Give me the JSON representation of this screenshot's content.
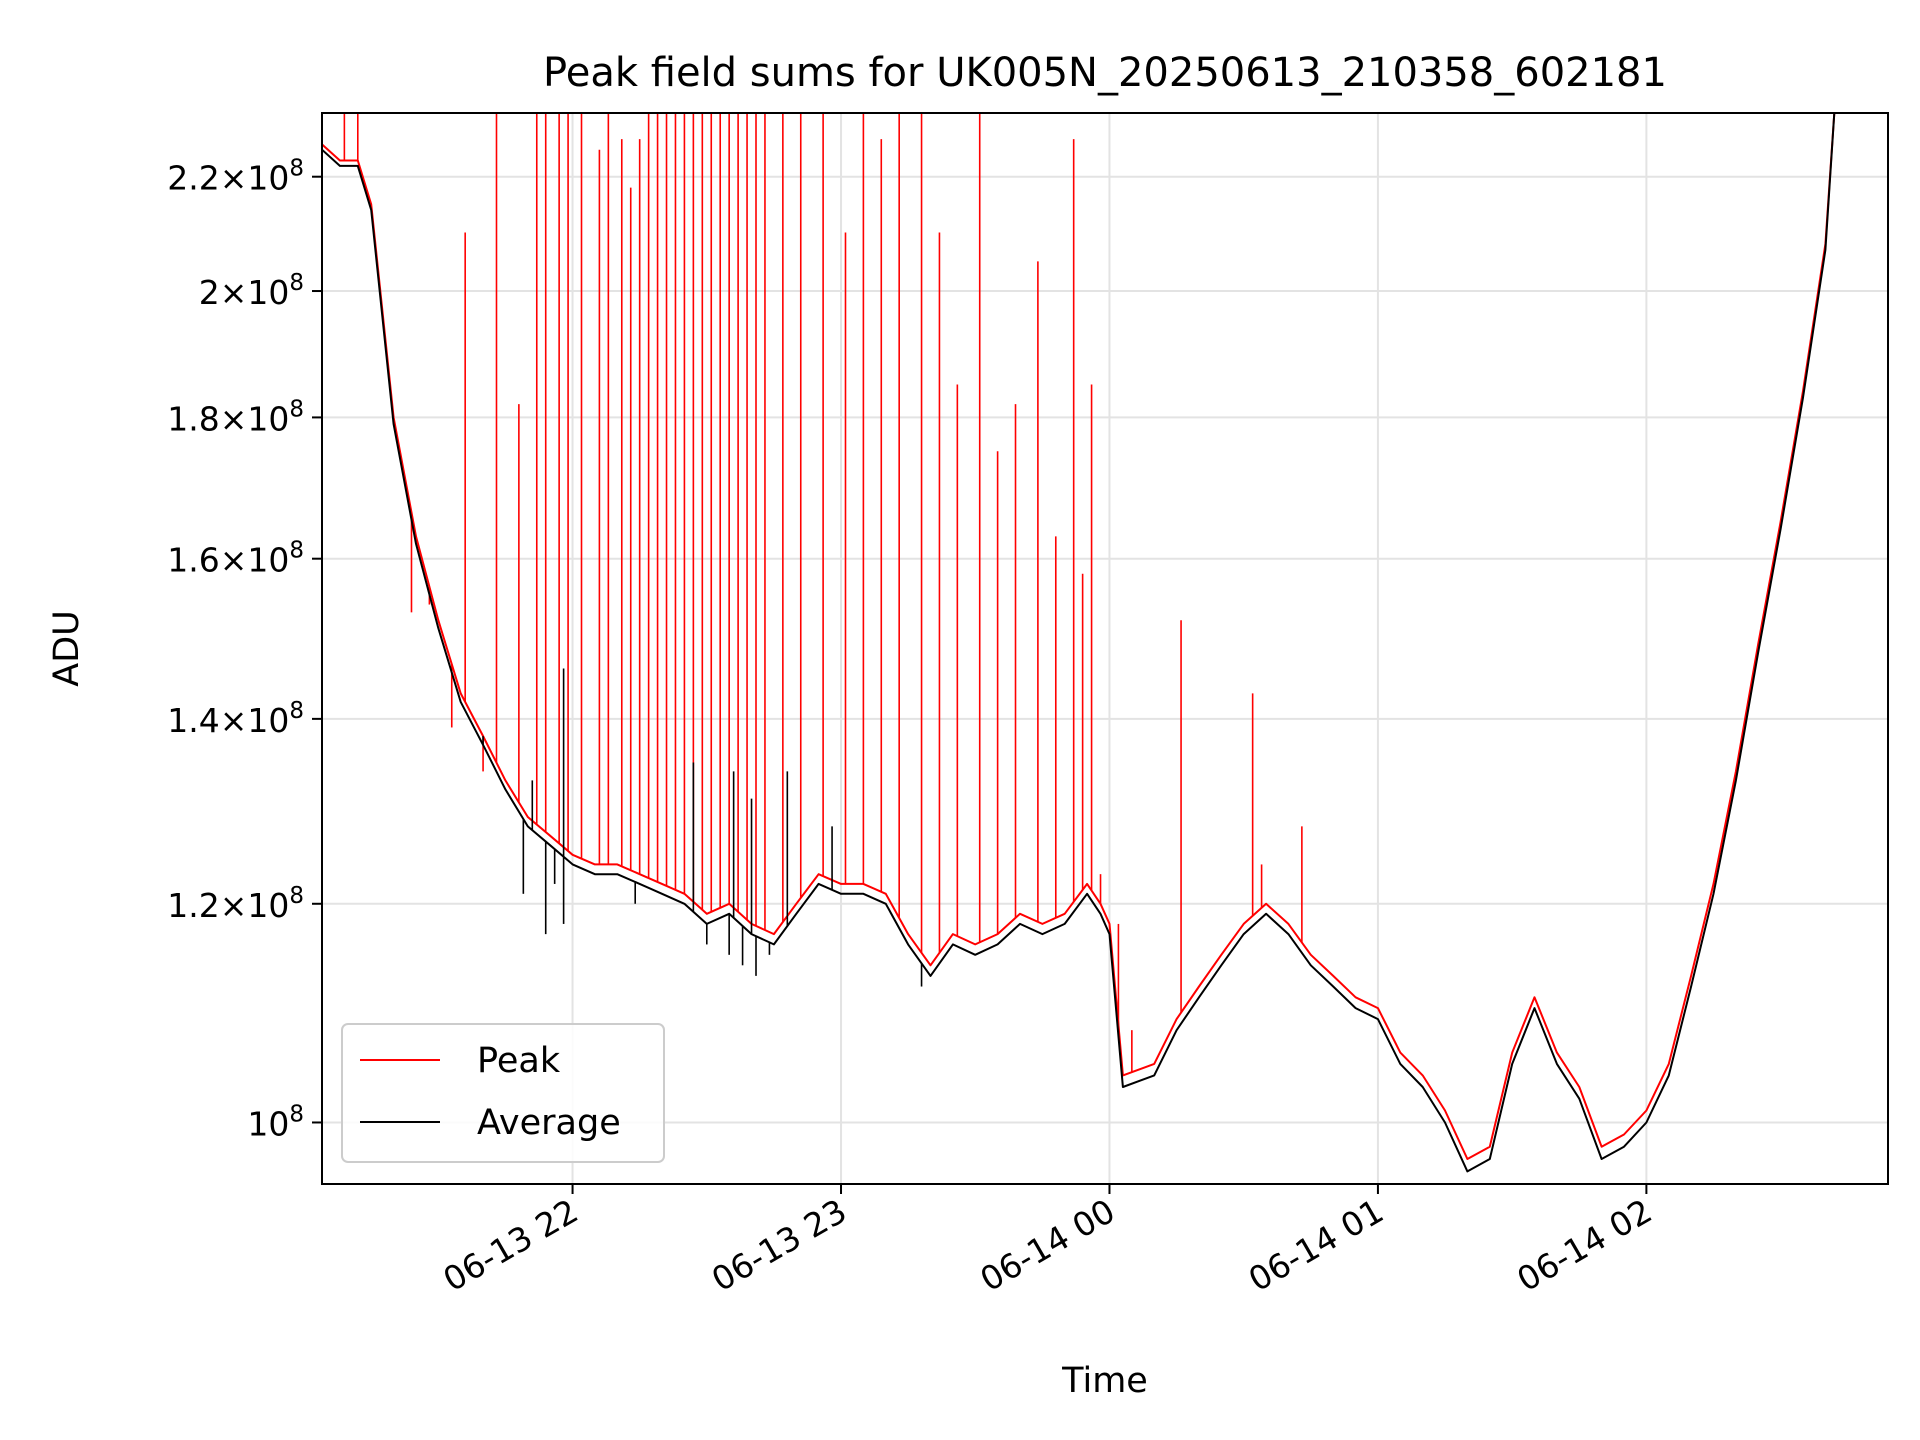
{
  "chart_data": {
    "type": "line",
    "title": "Peak field sums for UK005N_20250613_210358_602181",
    "xlabel": "Time",
    "ylabel": "ADU",
    "yscale": "log",
    "grid": true,
    "legend_position": "lower-left",
    "xlim": [
      "2025-06-13 21:04",
      "2025-06-14 02:54"
    ],
    "ylim": [
      95000000,
      232000000
    ],
    "x_ticks": [
      {
        "value": "2025-06-13 22:00",
        "label": "06-13 22"
      },
      {
        "value": "2025-06-13 23:00",
        "label": "06-13 23"
      },
      {
        "value": "2025-06-14 00:00",
        "label": "06-14 00"
      },
      {
        "value": "2025-06-14 01:00",
        "label": "06-14 01"
      },
      {
        "value": "2025-06-14 02:00",
        "label": "06-14 02"
      }
    ],
    "y_ticks": [
      {
        "value": 100000000,
        "base": "10",
        "exp": "8",
        "mant": ""
      },
      {
        "value": 120000000,
        "base": "10",
        "exp": "8",
        "mant": "1.2"
      },
      {
        "value": 140000000,
        "base": "10",
        "exp": "8",
        "mant": "1.4"
      },
      {
        "value": 160000000,
        "base": "10",
        "exp": "8",
        "mant": "1.6"
      },
      {
        "value": 180000000,
        "base": "10",
        "exp": "8",
        "mant": "1.8"
      },
      {
        "value": 200000000,
        "base": "10",
        "exp": "8",
        "mant": "2"
      },
      {
        "value": 220000000,
        "base": "10",
        "exp": "8",
        "mant": "2.2"
      }
    ],
    "series": [
      {
        "name": "Peak",
        "color": "#ff0000",
        "x": [
          "2025-06-13 21:04",
          "2025-06-13 21:08",
          "2025-06-13 21:12",
          "2025-06-13 21:15",
          "2025-06-13 21:20",
          "2025-06-13 21:25",
          "2025-06-13 21:30",
          "2025-06-13 21:35",
          "2025-06-13 21:40",
          "2025-06-13 21:45",
          "2025-06-13 21:50",
          "2025-06-13 21:55",
          "2025-06-13 22:00",
          "2025-06-13 22:05",
          "2025-06-13 22:10",
          "2025-06-13 22:15",
          "2025-06-13 22:20",
          "2025-06-13 22:25",
          "2025-06-13 22:30",
          "2025-06-13 22:35",
          "2025-06-13 22:40",
          "2025-06-13 22:45",
          "2025-06-13 22:50",
          "2025-06-13 22:55",
          "2025-06-13 23:00",
          "2025-06-13 23:05",
          "2025-06-13 23:10",
          "2025-06-13 23:15",
          "2025-06-13 23:20",
          "2025-06-13 23:25",
          "2025-06-13 23:30",
          "2025-06-13 23:35",
          "2025-06-13 23:40",
          "2025-06-13 23:45",
          "2025-06-13 23:50",
          "2025-06-13 23:55",
          "2025-06-13 23:58",
          "2025-06-14 00:00",
          "2025-06-14 00:03",
          "2025-06-14 00:10",
          "2025-06-14 00:15",
          "2025-06-14 00:20",
          "2025-06-14 00:25",
          "2025-06-14 00:30",
          "2025-06-14 00:35",
          "2025-06-14 00:40",
          "2025-06-14 00:45",
          "2025-06-14 00:50",
          "2025-06-14 00:55",
          "2025-06-14 01:00",
          "2025-06-14 01:05",
          "2025-06-14 01:10",
          "2025-06-14 01:15",
          "2025-06-14 01:20",
          "2025-06-14 01:25",
          "2025-06-14 01:30",
          "2025-06-14 01:35",
          "2025-06-14 01:40",
          "2025-06-14 01:45",
          "2025-06-14 01:50",
          "2025-06-14 01:55",
          "2025-06-14 02:00",
          "2025-06-14 02:05",
          "2025-06-14 02:10",
          "2025-06-14 02:15",
          "2025-06-14 02:20",
          "2025-06-14 02:25",
          "2025-06-14 02:30",
          "2025-06-14 02:35",
          "2025-06-14 02:40",
          "2025-06-14 02:42"
        ],
        "y": [
          226000000,
          223000000,
          223000000,
          215000000,
          180000000,
          163000000,
          152000000,
          143000000,
          138000000,
          133000000,
          129000000,
          127000000,
          125000000,
          124000000,
          124000000,
          123000000,
          122000000,
          121000000,
          119000000,
          120000000,
          118000000,
          117000000,
          120000000,
          123000000,
          122000000,
          122000000,
          121000000,
          117000000,
          114000000,
          117000000,
          116000000,
          117000000,
          119000000,
          118000000,
          119000000,
          122000000,
          120000000,
          118000000,
          104000000,
          105000000,
          109000000,
          112000000,
          115000000,
          118000000,
          120000000,
          118000000,
          115000000,
          113000000,
          111000000,
          110000000,
          106000000,
          104000000,
          101000000,
          97000000,
          98000000,
          106000000,
          111000000,
          106000000,
          103000000,
          98000000,
          99000000,
          101000000,
          105000000,
          113000000,
          122000000,
          134000000,
          149000000,
          165000000,
          184000000,
          208000000,
          232000000
        ],
        "spikes": [
          {
            "x": "2025-06-13 21:09",
            "y": 232000000
          },
          {
            "x": "2025-06-13 21:12",
            "y": 232000000
          },
          {
            "x": "2025-06-13 21:24",
            "y": 153000000
          },
          {
            "x": "2025-06-13 21:28",
            "y": 154000000
          },
          {
            "x": "2025-06-13 21:33",
            "y": 139000000
          },
          {
            "x": "2025-06-13 21:36",
            "y": 210000000
          },
          {
            "x": "2025-06-13 21:40",
            "y": 134000000
          },
          {
            "x": "2025-06-13 21:43",
            "y": 232000000
          },
          {
            "x": "2025-06-13 21:48",
            "y": 182000000
          },
          {
            "x": "2025-06-13 21:52",
            "y": 232000000
          },
          {
            "x": "2025-06-13 21:54",
            "y": 232000000
          },
          {
            "x": "2025-06-13 21:57",
            "y": 232000000
          },
          {
            "x": "2025-06-13 21:59",
            "y": 232000000
          },
          {
            "x": "2025-06-13 22:02",
            "y": 232000000
          },
          {
            "x": "2025-06-13 22:06",
            "y": 225000000
          },
          {
            "x": "2025-06-13 22:08",
            "y": 232000000
          },
          {
            "x": "2025-06-13 22:11",
            "y": 227000000
          },
          {
            "x": "2025-06-13 22:13",
            "y": 218000000
          },
          {
            "x": "2025-06-13 22:15",
            "y": 227000000
          },
          {
            "x": "2025-06-13 22:17",
            "y": 232000000
          },
          {
            "x": "2025-06-13 22:19",
            "y": 232000000
          },
          {
            "x": "2025-06-13 22:21",
            "y": 232000000
          },
          {
            "x": "2025-06-13 22:23",
            "y": 232000000
          },
          {
            "x": "2025-06-13 22:25",
            "y": 232000000
          },
          {
            "x": "2025-06-13 22:27",
            "y": 232000000
          },
          {
            "x": "2025-06-13 22:29",
            "y": 232000000
          },
          {
            "x": "2025-06-13 22:31",
            "y": 232000000
          },
          {
            "x": "2025-06-13 22:33",
            "y": 232000000
          },
          {
            "x": "2025-06-13 22:35",
            "y": 232000000
          },
          {
            "x": "2025-06-13 22:37",
            "y": 232000000
          },
          {
            "x": "2025-06-13 22:39",
            "y": 232000000
          },
          {
            "x": "2025-06-13 22:41",
            "y": 232000000
          },
          {
            "x": "2025-06-13 22:43",
            "y": 232000000
          },
          {
            "x": "2025-06-13 22:47",
            "y": 232000000
          },
          {
            "x": "2025-06-13 22:51",
            "y": 232000000
          },
          {
            "x": "2025-06-13 22:56",
            "y": 232000000
          },
          {
            "x": "2025-06-13 23:01",
            "y": 210000000
          },
          {
            "x": "2025-06-13 23:05",
            "y": 232000000
          },
          {
            "x": "2025-06-13 23:09",
            "y": 227000000
          },
          {
            "x": "2025-06-13 23:13",
            "y": 232000000
          },
          {
            "x": "2025-06-13 23:18",
            "y": 232000000
          },
          {
            "x": "2025-06-13 23:22",
            "y": 210000000
          },
          {
            "x": "2025-06-13 23:26",
            "y": 185000000
          },
          {
            "x": "2025-06-13 23:31",
            "y": 232000000
          },
          {
            "x": "2025-06-13 23:35",
            "y": 175000000
          },
          {
            "x": "2025-06-13 23:39",
            "y": 182000000
          },
          {
            "x": "2025-06-13 23:44",
            "y": 205000000
          },
          {
            "x": "2025-06-13 23:48",
            "y": 163000000
          },
          {
            "x": "2025-06-13 23:52",
            "y": 227000000
          },
          {
            "x": "2025-06-13 23:54",
            "y": 158000000
          },
          {
            "x": "2025-06-13 23:56",
            "y": 185000000
          },
          {
            "x": "2025-06-13 23:58",
            "y": 123000000
          },
          {
            "x": "2025-06-14 00:02",
            "y": 118000000
          },
          {
            "x": "2025-06-14 00:05",
            "y": 108000000
          },
          {
            "x": "2025-06-14 00:16",
            "y": 152000000
          },
          {
            "x": "2025-06-14 00:32",
            "y": 143000000
          },
          {
            "x": "2025-06-14 00:34",
            "y": 124000000
          },
          {
            "x": "2025-06-14 00:43",
            "y": 128000000
          }
        ]
      },
      {
        "name": "Average",
        "color": "#000000",
        "x": [
          "2025-06-13 21:04",
          "2025-06-13 21:08",
          "2025-06-13 21:12",
          "2025-06-13 21:15",
          "2025-06-13 21:20",
          "2025-06-13 21:25",
          "2025-06-13 21:30",
          "2025-06-13 21:35",
          "2025-06-13 21:40",
          "2025-06-13 21:45",
          "2025-06-13 21:50",
          "2025-06-13 21:55",
          "2025-06-13 22:00",
          "2025-06-13 22:05",
          "2025-06-13 22:10",
          "2025-06-13 22:15",
          "2025-06-13 22:20",
          "2025-06-13 22:25",
          "2025-06-13 22:30",
          "2025-06-13 22:35",
          "2025-06-13 22:40",
          "2025-06-13 22:45",
          "2025-06-13 22:50",
          "2025-06-13 22:55",
          "2025-06-13 23:00",
          "2025-06-13 23:05",
          "2025-06-13 23:10",
          "2025-06-13 23:15",
          "2025-06-13 23:20",
          "2025-06-13 23:25",
          "2025-06-13 23:30",
          "2025-06-13 23:35",
          "2025-06-13 23:40",
          "2025-06-13 23:45",
          "2025-06-13 23:50",
          "2025-06-13 23:55",
          "2025-06-13 23:58",
          "2025-06-14 00:00",
          "2025-06-14 00:03",
          "2025-06-14 00:10",
          "2025-06-14 00:15",
          "2025-06-14 00:20",
          "2025-06-14 00:25",
          "2025-06-14 00:30",
          "2025-06-14 00:35",
          "2025-06-14 00:40",
          "2025-06-14 00:45",
          "2025-06-14 00:50",
          "2025-06-14 00:55",
          "2025-06-14 01:00",
          "2025-06-14 01:05",
          "2025-06-14 01:10",
          "2025-06-14 01:15",
          "2025-06-14 01:20",
          "2025-06-14 01:25",
          "2025-06-14 01:30",
          "2025-06-14 01:35",
          "2025-06-14 01:40",
          "2025-06-14 01:45",
          "2025-06-14 01:50",
          "2025-06-14 01:55",
          "2025-06-14 02:00",
          "2025-06-14 02:05",
          "2025-06-14 02:10",
          "2025-06-14 02:15",
          "2025-06-14 02:20",
          "2025-06-14 02:25",
          "2025-06-14 02:30",
          "2025-06-14 02:35",
          "2025-06-14 02:40",
          "2025-06-14 02:42"
        ],
        "y": [
          225000000,
          222000000,
          222000000,
          214000000,
          179000000,
          162000000,
          151000000,
          142000000,
          137000000,
          132000000,
          128000000,
          126000000,
          124000000,
          123000000,
          123000000,
          122000000,
          121000000,
          120000000,
          118000000,
          119000000,
          117000000,
          116000000,
          119000000,
          122000000,
          121000000,
          121000000,
          120000000,
          116000000,
          113000000,
          116000000,
          115000000,
          116000000,
          118000000,
          117000000,
          118000000,
          121000000,
          119000000,
          117000000,
          103000000,
          104000000,
          108000000,
          111000000,
          114000000,
          117000000,
          119000000,
          117000000,
          114000000,
          112000000,
          110000000,
          109000000,
          105000000,
          103000000,
          100000000,
          96000000,
          97000000,
          105000000,
          110000000,
          105000000,
          102000000,
          97000000,
          98000000,
          100000000,
          104000000,
          112000000,
          121000000,
          133000000,
          148000000,
          164000000,
          183000000,
          207000000,
          232000000
        ],
        "dips": [
          {
            "x": "2025-06-13 21:49",
            "y": 121000000
          },
          {
            "x": "2025-06-13 21:54",
            "y": 117000000
          },
          {
            "x": "2025-06-13 21:56",
            "y": 122000000
          },
          {
            "x": "2025-06-13 21:58",
            "y": 118000000
          },
          {
            "x": "2025-06-13 22:14",
            "y": 120000000
          },
          {
            "x": "2025-06-13 22:30",
            "y": 116000000
          },
          {
            "x": "2025-06-13 22:35",
            "y": 115000000
          },
          {
            "x": "2025-06-13 22:38",
            "y": 114000000
          },
          {
            "x": "2025-06-13 22:41",
            "y": 113000000
          },
          {
            "x": "2025-06-13 22:44",
            "y": 115000000
          },
          {
            "x": "2025-06-13 23:18",
            "y": 112000000
          }
        ],
        "bumps": [
          {
            "x": "2025-06-13 21:40",
            "y": 138000000
          },
          {
            "x": "2025-06-13 21:51",
            "y": 133000000
          },
          {
            "x": "2025-06-13 21:58",
            "y": 146000000
          },
          {
            "x": "2025-06-13 22:27",
            "y": 135000000
          },
          {
            "x": "2025-06-13 22:36",
            "y": 134000000
          },
          {
            "x": "2025-06-13 22:40",
            "y": 131000000
          },
          {
            "x": "2025-06-13 22:48",
            "y": 134000000
          },
          {
            "x": "2025-06-13 22:58",
            "y": 128000000
          }
        ]
      }
    ],
    "legend": [
      {
        "label": "Peak",
        "color": "#ff0000"
      },
      {
        "label": "Average",
        "color": "#000000"
      }
    ]
  }
}
